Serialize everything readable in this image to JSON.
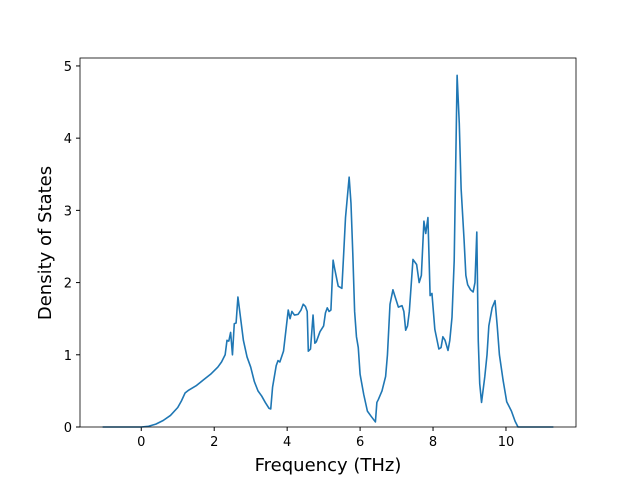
{
  "chart_data": {
    "type": "line",
    "xlabel": "Frequency (THz)",
    "ylabel": "Density of States",
    "xlim": [
      -1.68,
      11.92
    ],
    "ylim": [
      0,
      5.11
    ],
    "xticks": [
      0,
      2,
      4,
      6,
      8,
      10
    ],
    "yticks": [
      0,
      1,
      2,
      3,
      4,
      5
    ],
    "grid": false,
    "series": [
      {
        "color": "#1f77b4",
        "x": [
          -1.06,
          0,
          0.2,
          0.4,
          0.6,
          0.8,
          1.0,
          1.1,
          1.2,
          1.3,
          1.5,
          1.7,
          1.9,
          2.1,
          2.2,
          2.3,
          2.35,
          2.4,
          2.45,
          2.5,
          2.55,
          2.6,
          2.65,
          2.7,
          2.8,
          2.9,
          3.0,
          3.1,
          3.2,
          3.3,
          3.4,
          3.5,
          3.55,
          3.6,
          3.7,
          3.75,
          3.8,
          3.9,
          3.98,
          4.03,
          4.08,
          4.13,
          4.2,
          4.3,
          4.38,
          4.44,
          4.5,
          4.55,
          4.58,
          4.64,
          4.71,
          4.76,
          4.8,
          4.9,
          5.0,
          5.05,
          5.1,
          5.15,
          5.2,
          5.26,
          5.3,
          5.4,
          5.5,
          5.55,
          5.6,
          5.7,
          5.75,
          5.8,
          5.85,
          5.9,
          5.95,
          6.0,
          6.1,
          6.2,
          6.3,
          6.42,
          6.46,
          6.5,
          6.6,
          6.7,
          6.75,
          6.82,
          6.9,
          6.95,
          7.05,
          7.15,
          7.2,
          7.25,
          7.3,
          7.35,
          7.45,
          7.55,
          7.62,
          7.68,
          7.75,
          7.8,
          7.86,
          7.92,
          7.97,
          8.05,
          8.16,
          8.22,
          8.27,
          8.33,
          8.41,
          8.46,
          8.52,
          8.58,
          8.63,
          8.66,
          8.72,
          8.77,
          8.85,
          8.9,
          8.95,
          9.03,
          9.1,
          9.15,
          9.2,
          9.24,
          9.28,
          9.33,
          9.42,
          9.48,
          9.53,
          9.62,
          9.7,
          9.76,
          9.82,
          9.92,
          10.02,
          10.15,
          10.25,
          10.33,
          11.3
        ],
        "values": [
          0,
          0,
          0.01,
          0.04,
          0.09,
          0.16,
          0.27,
          0.36,
          0.47,
          0.51,
          0.57,
          0.65,
          0.73,
          0.83,
          0.9,
          1.0,
          1.2,
          1.19,
          1.31,
          1.0,
          1.43,
          1.44,
          1.8,
          1.6,
          1.2,
          0.97,
          0.83,
          0.63,
          0.5,
          0.43,
          0.34,
          0.26,
          0.25,
          0.55,
          0.85,
          0.92,
          0.9,
          1.05,
          1.4,
          1.62,
          1.5,
          1.6,
          1.55,
          1.56,
          1.62,
          1.7,
          1.67,
          1.6,
          1.05,
          1.08,
          1.55,
          1.16,
          1.18,
          1.32,
          1.4,
          1.58,
          1.65,
          1.6,
          1.62,
          2.31,
          2.2,
          1.95,
          1.92,
          2.4,
          2.9,
          3.46,
          3.1,
          2.4,
          1.6,
          1.25,
          1.1,
          0.73,
          0.45,
          0.22,
          0.15,
          0.07,
          0.34,
          0.38,
          0.5,
          0.7,
          1.0,
          1.7,
          1.9,
          1.82,
          1.66,
          1.68,
          1.6,
          1.34,
          1.4,
          1.6,
          2.32,
          2.25,
          2.0,
          2.1,
          2.85,
          2.68,
          2.9,
          1.82,
          1.85,
          1.35,
          1.08,
          1.1,
          1.25,
          1.2,
          1.06,
          1.2,
          1.52,
          2.3,
          3.9,
          4.87,
          4.2,
          3.3,
          2.6,
          2.1,
          1.97,
          1.9,
          1.87,
          2.0,
          2.7,
          1.2,
          0.6,
          0.34,
          0.7,
          1.0,
          1.4,
          1.65,
          1.75,
          1.4,
          1.0,
          0.65,
          0.35,
          0.22,
          0.08,
          0,
          0
        ]
      }
    ]
  }
}
